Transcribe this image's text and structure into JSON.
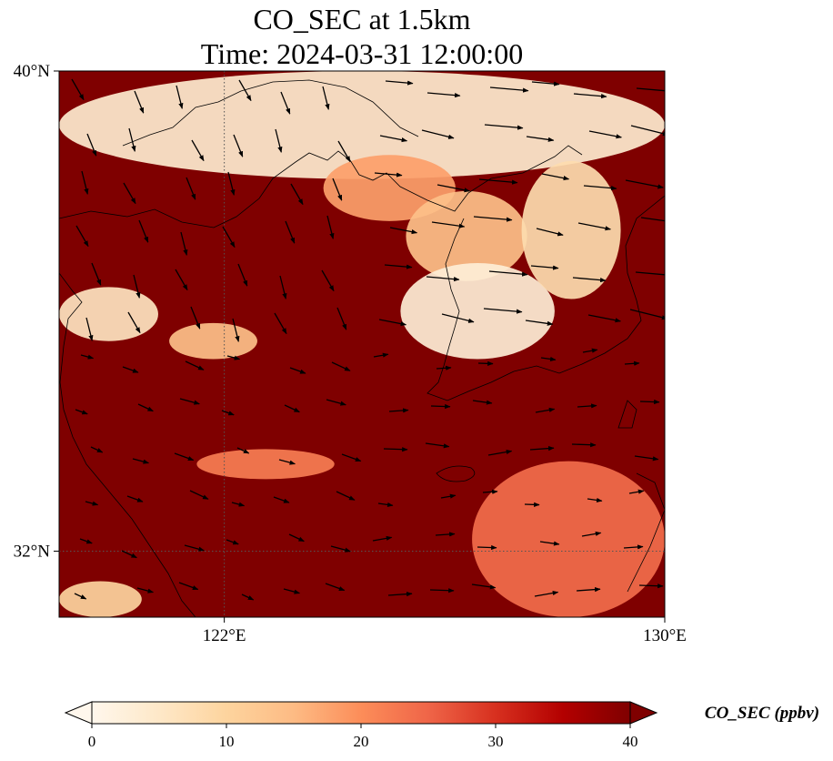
{
  "title": {
    "line1": "CO_SEC at 1.5km",
    "line2": "Time: 2024-03-31 12:00:00"
  },
  "map": {
    "lon_range": [
      119,
      130
    ],
    "lat_range": [
      30.9,
      40
    ],
    "lon_ticks": [
      {
        "value": 122,
        "label": "122°E"
      },
      {
        "value": 130,
        "label": "130°E"
      }
    ],
    "lat_ticks": [
      {
        "value": 40,
        "label": "40°N"
      },
      {
        "value": 32,
        "label": "32°N"
      }
    ],
    "gridlines": "dotted at labeled ticks",
    "basemap": "coastlines"
  },
  "colorbar": {
    "label": "CO_SEC (ppbv)",
    "vmin": 0,
    "vmax": 40,
    "ticks": [
      {
        "value": 0,
        "label": "0"
      },
      {
        "value": 10,
        "label": "10"
      },
      {
        "value": 20,
        "label": "20"
      },
      {
        "value": 30,
        "label": "30"
      },
      {
        "value": 40,
        "label": "40"
      }
    ],
    "extend": "both",
    "colormap": "OrRd",
    "colors": [
      "#fff7ec",
      "#fee8c8",
      "#fdd49e",
      "#fdbb84",
      "#fc8d59",
      "#ef6548",
      "#d7301f",
      "#b30000",
      "#7f0000"
    ]
  },
  "chart_data": {
    "type": "heatmap",
    "variable": "CO_SEC",
    "units": "ppbv",
    "level": "1.5km",
    "time": "2024-03-31 12:00:00",
    "background_value": 40,
    "low_regions": [
      {
        "lon": [
          119.0,
          130.0
        ],
        "lat": [
          38.2,
          40.0
        ],
        "value": 4
      },
      {
        "lon": [
          123.8,
          126.2
        ],
        "lat": [
          37.5,
          38.6
        ],
        "value": 18
      },
      {
        "lon": [
          125.3,
          127.5
        ],
        "lat": [
          36.5,
          38.0
        ],
        "value": 14
      },
      {
        "lon": [
          125.2,
          128.0
        ],
        "lat": [
          35.2,
          36.8
        ],
        "value": 3
      },
      {
        "lon": [
          127.4,
          129.2
        ],
        "lat": [
          36.2,
          38.5
        ],
        "value": 8
      },
      {
        "lon": [
          119.0,
          120.8
        ],
        "lat": [
          35.5,
          36.4
        ],
        "value": 6
      },
      {
        "lon": [
          121.0,
          122.6
        ],
        "lat": [
          35.2,
          35.8
        ],
        "value": 14
      },
      {
        "lon": [
          121.5,
          124.0
        ],
        "lat": [
          33.2,
          33.7
        ],
        "value": 22
      },
      {
        "lon": [
          126.5,
          130.0
        ],
        "lat": [
          30.9,
          33.5
        ],
        "value": 24
      },
      {
        "lon": [
          119.0,
          120.5
        ],
        "lat": [
          30.9,
          31.5
        ],
        "value": 10
      }
    ],
    "wind_vectors": "quiver arrows over domain"
  }
}
